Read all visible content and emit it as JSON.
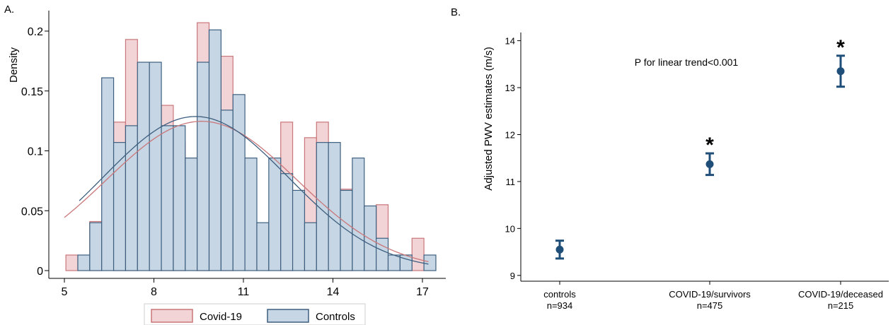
{
  "chart_data": [
    {
      "panel": "A.",
      "type": "bar",
      "subtype": "overlaid histogram with fitted normal density curves",
      "ylabel": "Density",
      "xlabel": "",
      "xlim": [
        5,
        17.6
      ],
      "ylim": [
        0,
        0.22
      ],
      "xticks": [
        "5",
        "8",
        "11",
        "14",
        "17"
      ],
      "yticks": [
        "0",
        "0.05",
        "0.1",
        "0.15",
        "0.2"
      ],
      "bin_width": 0.4,
      "bin_starts": [
        5.05,
        5.45,
        5.85,
        6.25,
        6.65,
        7.05,
        7.45,
        7.85,
        8.25,
        8.65,
        9.05,
        9.45,
        9.85,
        10.25,
        10.65,
        11.05,
        11.45,
        11.85,
        12.25,
        12.65,
        13.05,
        13.45,
        13.85,
        14.25,
        14.65,
        15.05,
        15.45,
        15.85,
        16.25,
        16.65,
        17.05
      ],
      "series": [
        {
          "name": "Covid-19",
          "color": "#c9777a",
          "fill": "#f2d3d6",
          "values": [
            0.013,
            0.0,
            0.041,
            0.0,
            0.124,
            0.193,
            0.0,
            0.118,
            0.138,
            0.107,
            0.0,
            0.207,
            0.0,
            0.179,
            0.0,
            0.0,
            0.0,
            0.0,
            0.124,
            0.0,
            0.111,
            0.124,
            0.048,
            0.068,
            0.0,
            0.028,
            0.055,
            0.0,
            0.013,
            0.027,
            0.0
          ],
          "curve": {
            "mean": 9.6,
            "sd": 3.2
          }
        },
        {
          "name": "Controls",
          "color": "#3d5f7f",
          "fill": "#c7d6e4",
          "values": [
            0.0,
            0.013,
            0.04,
            0.161,
            0.107,
            0.121,
            0.174,
            0.174,
            0.121,
            0.121,
            0.094,
            0.174,
            0.201,
            0.134,
            0.147,
            0.094,
            0.04,
            0.094,
            0.081,
            0.067,
            0.04,
            0.107,
            0.107,
            0.067,
            0.094,
            0.054,
            0.027,
            0.013,
            0.013,
            0.0,
            0.013
          ],
          "curve": {
            "mean": 9.4,
            "sd": 3.1
          }
        }
      ],
      "legend": {
        "placement": "bottom",
        "items": [
          "Covid-19",
          "Controls"
        ]
      }
    },
    {
      "panel": "B.",
      "type": "scatter",
      "subtype": "point estimates with error bars",
      "ylabel": "Adjusted PWV estimates (m/s)",
      "xlabel": "",
      "ylim": [
        8.85,
        14.15
      ],
      "yticks": [
        "9",
        "10",
        "11",
        "12",
        "13",
        "14"
      ],
      "annotation": "P for linear trend<0.001",
      "color": "#1f4e79",
      "significance_marker": "*",
      "categories": [
        {
          "name": "controls",
          "n": "n=934",
          "estimate": 9.55,
          "lower": 9.36,
          "upper": 9.74,
          "significant": false
        },
        {
          "name": "COVID-19/survivors",
          "n": "n=475",
          "estimate": 11.37,
          "lower": 11.14,
          "upper": 11.6,
          "significant": true
        },
        {
          "name": "COVID-19/deceased",
          "n": "n=215",
          "estimate": 13.35,
          "lower": 13.02,
          "upper": 13.68,
          "significant": true
        }
      ]
    }
  ]
}
